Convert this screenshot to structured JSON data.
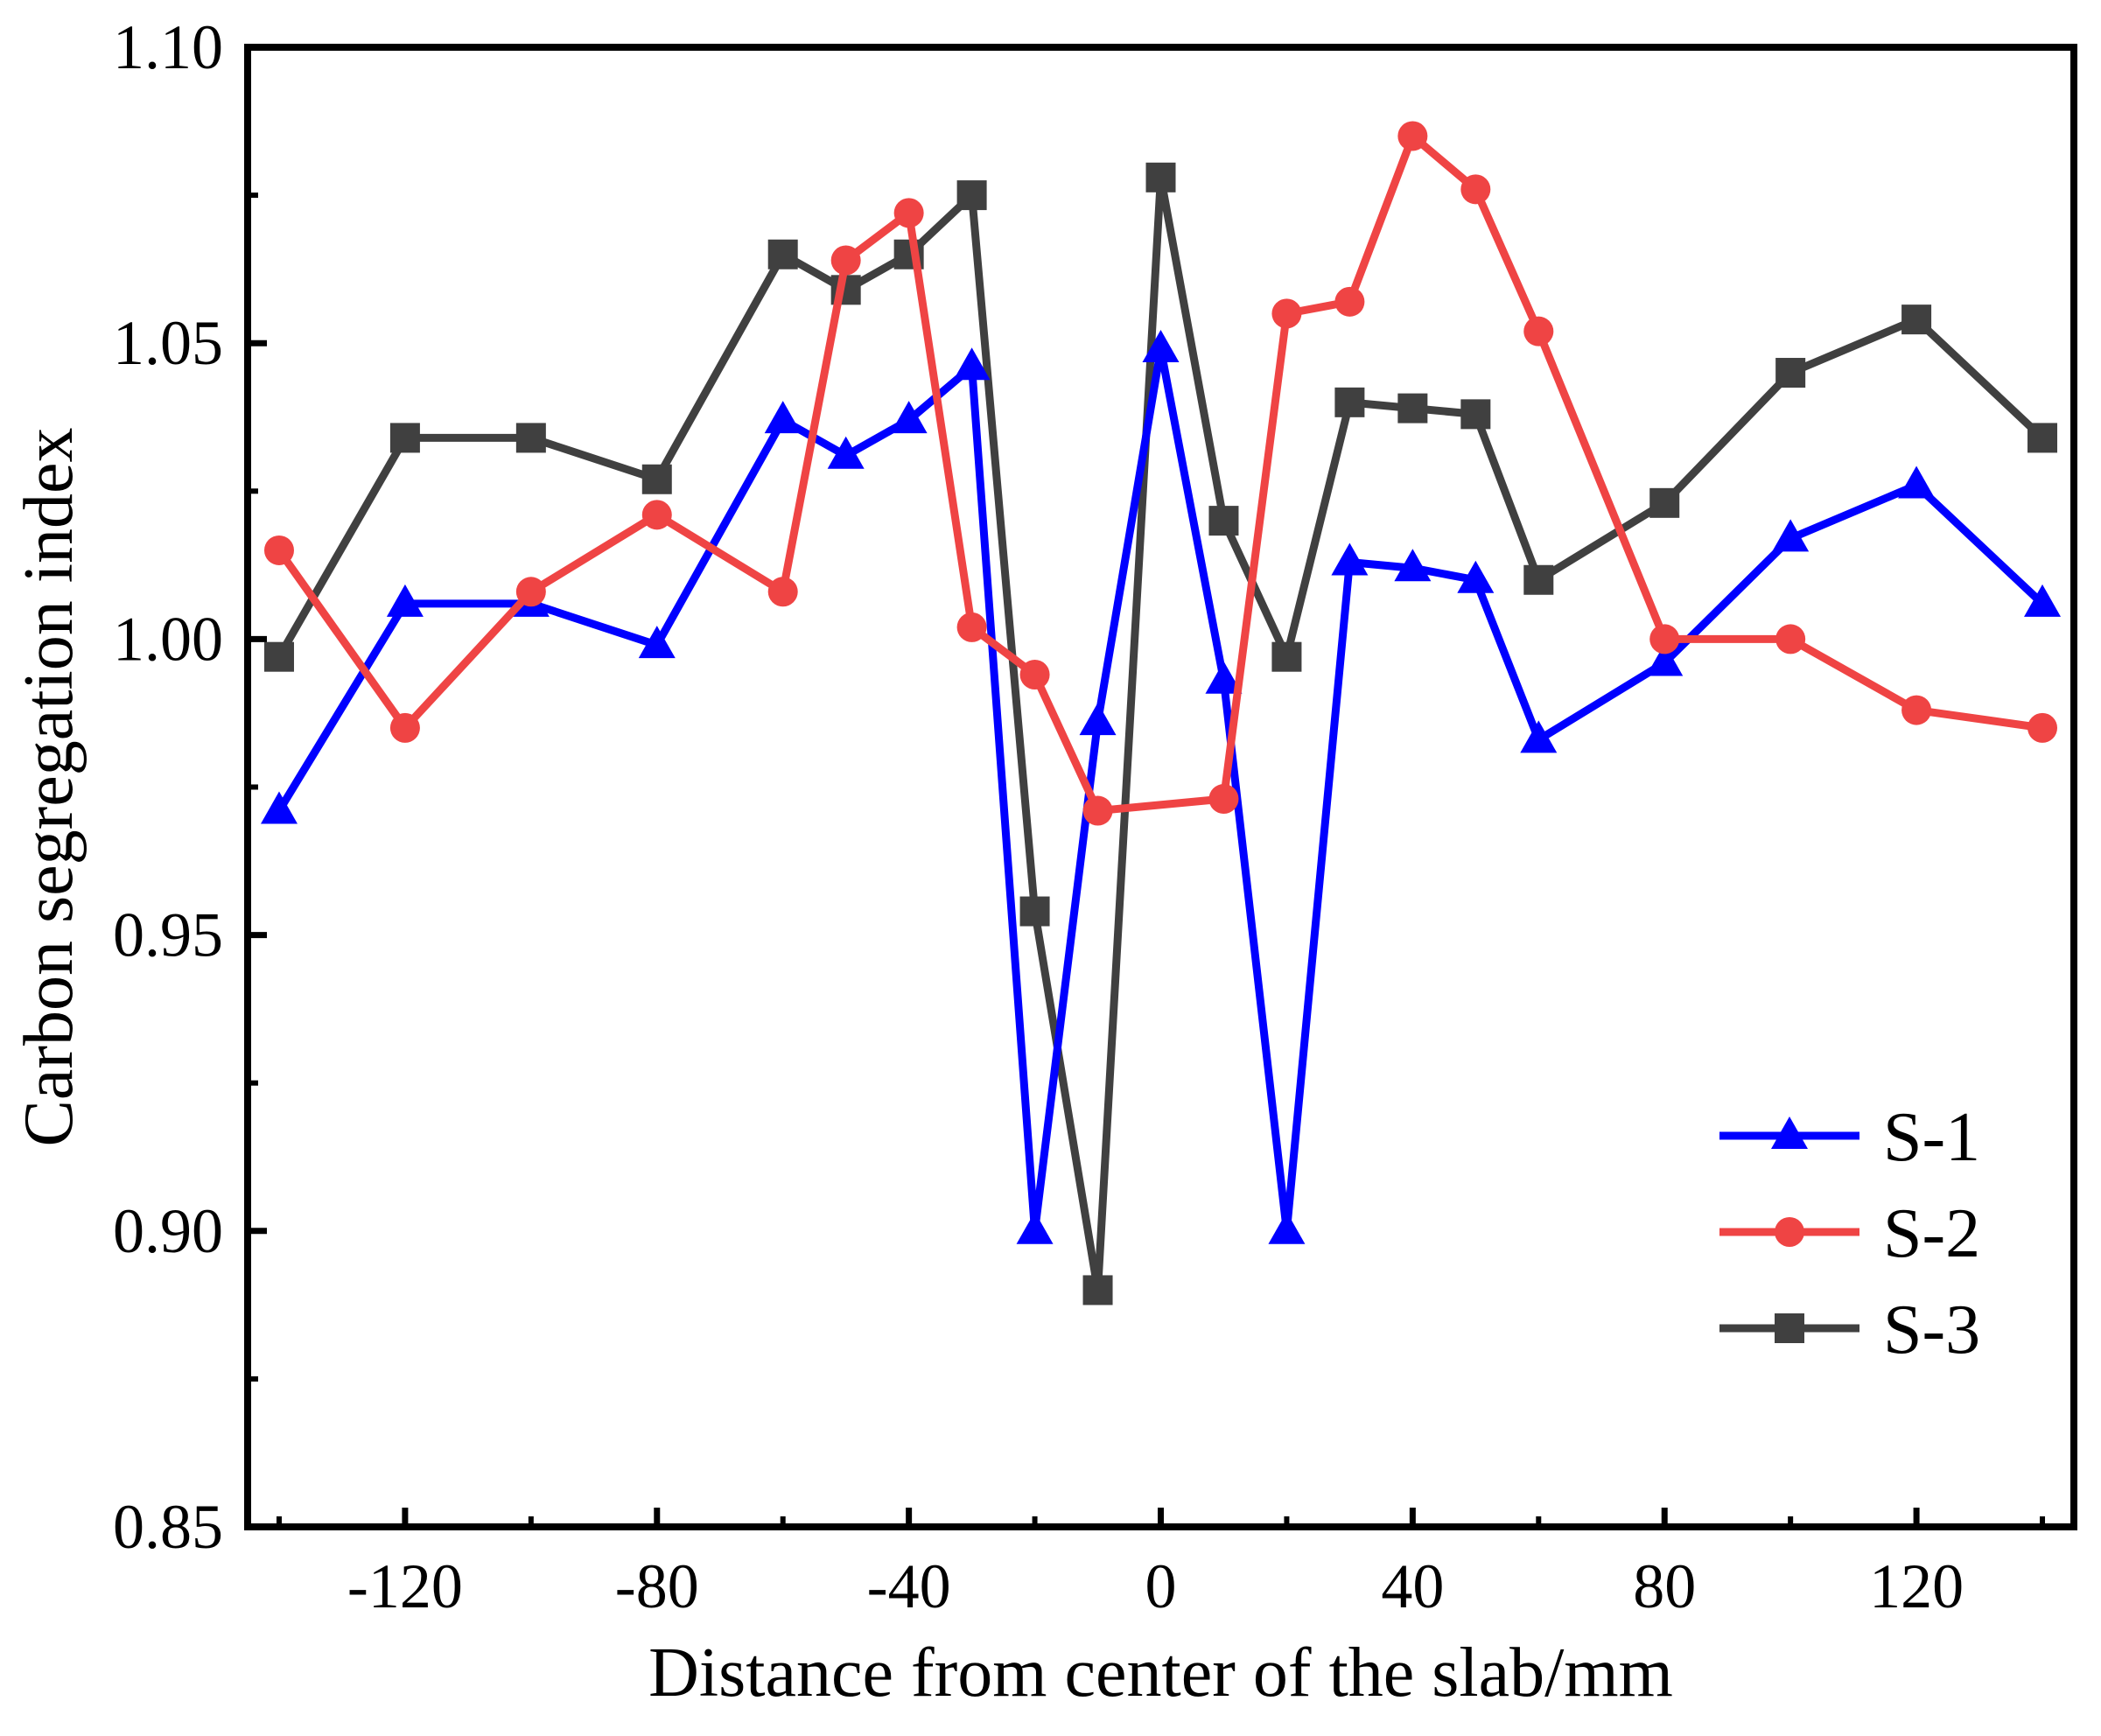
{
  "chart_data": {
    "type": "line",
    "title": "",
    "xlabel": "Distance from center of the slab/mm",
    "ylabel": "Carbon segregation index",
    "xlim": [
      -145,
      145
    ],
    "ylim": [
      0.85,
      1.1
    ],
    "xticks": [
      -120,
      -80,
      -40,
      0,
      40,
      80,
      120
    ],
    "xtick_labels": [
      "-120",
      "-80",
      "-40",
      "0",
      "40",
      "80",
      "120"
    ],
    "yticks": [
      0.85,
      0.9,
      0.95,
      1.0,
      1.05,
      1.1
    ],
    "ytick_labels": [
      "0.85",
      "0.90",
      "0.95",
      "1.00",
      "1.05",
      "1.10"
    ],
    "grid": false,
    "legend_position": "bottom-right",
    "x": [
      -140,
      -120,
      -100,
      -80,
      -60,
      -50,
      -40,
      -30,
      -20,
      -10,
      0,
      10,
      20,
      30,
      40,
      50,
      60,
      80,
      100,
      120,
      140
    ],
    "series": [
      {
        "name": "S-1",
        "color": "#0000ff",
        "marker": "triangle",
        "values": [
          0.971,
          1.006,
          1.006,
          0.999,
          1.037,
          1.031,
          1.037,
          1.046,
          0.9,
          0.986,
          1.049,
          0.993,
          0.9,
          1.013,
          1.012,
          1.01,
          0.983,
          0.996,
          1.017,
          1.026,
          1.006
        ]
      },
      {
        "name": "S-2",
        "color": "#ef4444",
        "marker": "circle",
        "values": [
          1.015,
          0.985,
          1.008,
          1.021,
          1.008,
          1.064,
          1.072,
          1.002,
          0.994,
          0.971,
          null,
          0.973,
          1.055,
          1.057,
          1.085,
          1.076,
          1.052,
          1.0,
          1.0,
          0.988,
          0.985
        ]
      },
      {
        "name": "S-3",
        "color": "#404040",
        "marker": "square",
        "values": [
          0.997,
          1.034,
          1.034,
          1.027,
          1.065,
          1.059,
          1.065,
          1.075,
          0.954,
          0.89,
          1.078,
          1.02,
          0.997,
          1.04,
          1.039,
          1.038,
          1.01,
          1.023,
          1.045,
          1.054,
          1.034
        ]
      }
    ]
  }
}
